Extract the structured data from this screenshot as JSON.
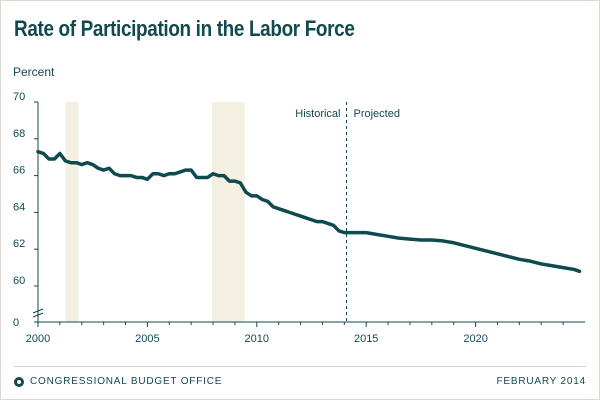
{
  "colors": {
    "line": "#0f4a4f",
    "axis": "#114a4f",
    "recession": "#f3f0e2",
    "divider": "#114a4f"
  },
  "footer": {
    "agency": "CONGRESSIONAL BUDGET OFFICE",
    "date": "FEBRUARY 2014",
    "logo_icon": "cbo-logo-icon"
  },
  "chart_data": {
    "type": "line",
    "title": "Rate of Participation in the Labor Force",
    "ylabel": "Percent",
    "xlabel": "",
    "xlim": [
      2000,
      2025
    ],
    "ylim": [
      0,
      70
    ],
    "y_ticks": [
      0,
      60,
      62,
      64,
      66,
      68,
      70
    ],
    "x_ticks": [
      2000,
      2005,
      2010,
      2015,
      2020
    ],
    "axis_break": "y between 0 and 60",
    "grid": false,
    "recession_bands": [
      [
        2001.25,
        2001.85
      ],
      [
        2007.95,
        2009.45
      ]
    ],
    "divider": {
      "x": 2014.1,
      "left_label": "Historical",
      "right_label": "Projected"
    },
    "series": [
      {
        "x": [
          2000.0,
          2000.25,
          2000.5,
          2000.75,
          2001.0,
          2001.25,
          2001.5,
          2001.75,
          2002.0,
          2002.25,
          2002.5,
          2002.75,
          2003.0,
          2003.25,
          2003.5,
          2003.75,
          2004.0,
          2004.25,
          2004.5,
          2004.75,
          2005.0,
          2005.25,
          2005.5,
          2005.75,
          2006.0,
          2006.25,
          2006.5,
          2006.75,
          2007.0,
          2007.25,
          2007.5,
          2007.75,
          2008.0,
          2008.25,
          2008.5,
          2008.75,
          2009.0,
          2009.25,
          2009.5,
          2009.75,
          2010.0,
          2010.25,
          2010.5,
          2010.75,
          2011.0,
          2011.25,
          2011.5,
          2011.75,
          2012.0,
          2012.25,
          2012.5,
          2012.75,
          2013.0,
          2013.25,
          2013.5,
          2013.75,
          2014.0,
          2014.5,
          2015.0,
          2015.5,
          2016.0,
          2016.5,
          2017.0,
          2017.5,
          2018.0,
          2018.5,
          2019.0,
          2019.5,
          2020.0,
          2020.5,
          2021.0,
          2021.5,
          2022.0,
          2022.5,
          2023.0,
          2023.5,
          2024.0,
          2024.5,
          2024.75
        ],
        "values": [
          67.3,
          67.2,
          66.9,
          66.9,
          67.2,
          66.8,
          66.7,
          66.7,
          66.6,
          66.7,
          66.6,
          66.4,
          66.3,
          66.4,
          66.1,
          66.0,
          66.0,
          66.0,
          65.9,
          65.9,
          65.8,
          66.1,
          66.1,
          66.0,
          66.1,
          66.1,
          66.2,
          66.3,
          66.3,
          65.9,
          65.9,
          65.9,
          66.1,
          66.0,
          66.0,
          65.7,
          65.7,
          65.6,
          65.1,
          64.9,
          64.9,
          64.7,
          64.6,
          64.3,
          64.2,
          64.1,
          64.0,
          63.9,
          63.8,
          63.7,
          63.6,
          63.5,
          63.5,
          63.4,
          63.3,
          63.0,
          62.9,
          62.9,
          62.9,
          62.8,
          62.7,
          62.6,
          62.55,
          62.5,
          62.5,
          62.45,
          62.35,
          62.2,
          62.05,
          61.9,
          61.75,
          61.6,
          61.45,
          61.35,
          61.2,
          61.1,
          61.0,
          60.9,
          60.8
        ]
      }
    ]
  }
}
